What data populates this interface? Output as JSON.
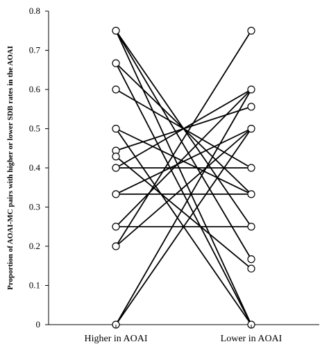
{
  "chart_data": {
    "type": "line",
    "title": "",
    "xlabel": "",
    "ylabel": "Proportion of AOAI-MC pairs with higher or lower SDB rates in the AOAI",
    "categories": [
      "Higher in AOAI",
      "Lower in AOAI"
    ],
    "ylim": [
      0,
      0.8
    ],
    "yticks": [
      0,
      0.1,
      0.2,
      0.3,
      0.4,
      0.5,
      0.6,
      0.7,
      0.8
    ],
    "ytick_labels": [
      "0",
      "0.1",
      "0.2",
      "0.3",
      "0.4",
      "0.5",
      "0.6",
      "0.7",
      "0.8"
    ],
    "grid": false,
    "legend": "none",
    "marker": "open-circle",
    "pairs": [
      [
        0.75,
        0.25
      ],
      [
        0.75,
        0.0
      ],
      [
        0.75,
        0.167
      ],
      [
        0.667,
        0.0
      ],
      [
        0.667,
        0.333
      ],
      [
        0.6,
        0.4
      ],
      [
        0.5,
        0.333
      ],
      [
        0.5,
        0.0
      ],
      [
        0.444,
        0.556
      ],
      [
        0.429,
        0.143
      ],
      [
        0.4,
        0.4
      ],
      [
        0.4,
        0.6
      ],
      [
        0.333,
        0.333
      ],
      [
        0.333,
        0.5
      ],
      [
        0.25,
        0.6
      ],
      [
        0.25,
        0.25
      ],
      [
        0.2,
        0.75
      ],
      [
        0.2,
        0.5
      ],
      [
        0.0,
        0.5
      ],
      [
        0.0,
        0.6
      ]
    ]
  }
}
